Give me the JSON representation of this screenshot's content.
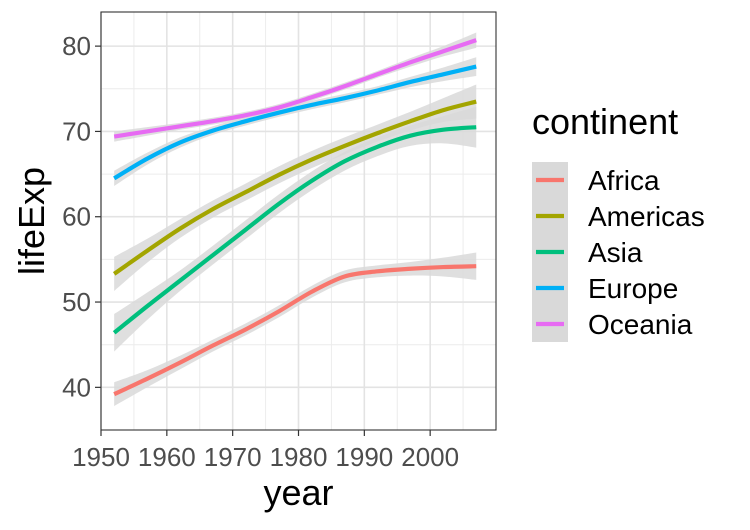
{
  "chart_data": {
    "type": "line",
    "xlabel": "year",
    "ylabel": "lifeExp",
    "xlim": [
      1950,
      2010
    ],
    "ylim": [
      35,
      84
    ],
    "xticks": [
      1950,
      1960,
      1970,
      1980,
      1990,
      2000
    ],
    "yticks": [
      40,
      50,
      60,
      70,
      80
    ],
    "grid": true,
    "smooth": true,
    "confidence_band": true,
    "band_color": "#d9d9d9",
    "legend": {
      "title": "continent",
      "position": "right"
    },
    "series": [
      {
        "name": "Africa",
        "color": "#F8766D",
        "x": [
          1952,
          1957,
          1962,
          1967,
          1972,
          1977,
          1982,
          1987,
          1992,
          1997,
          2002,
          2007
        ],
        "y": [
          39.2,
          41.0,
          42.9,
          44.9,
          46.8,
          48.9,
          51.2,
          53.0,
          53.6,
          53.9,
          54.1,
          54.2
        ],
        "band": [
          1.4,
          1.0,
          0.8,
          0.7,
          0.7,
          0.7,
          0.7,
          0.7,
          0.7,
          0.8,
          1.1,
          1.6
        ]
      },
      {
        "name": "Americas",
        "color": "#A3A500",
        "x": [
          1952,
          1957,
          1962,
          1967,
          1972,
          1977,
          1982,
          1987,
          1992,
          1997,
          2002,
          2007
        ],
        "y": [
          53.3,
          56.0,
          58.6,
          60.9,
          62.9,
          64.9,
          66.7,
          68.3,
          69.8,
          71.2,
          72.5,
          73.5
        ],
        "band": [
          2.0,
          1.4,
          1.1,
          1.0,
          1.0,
          1.0,
          1.0,
          1.0,
          1.0,
          1.1,
          1.4,
          2.0
        ]
      },
      {
        "name": "Asia",
        "color": "#00BF7D",
        "x": [
          1952,
          1957,
          1962,
          1967,
          1972,
          1977,
          1982,
          1987,
          1992,
          1997,
          2002,
          2007
        ],
        "y": [
          46.4,
          49.5,
          52.5,
          55.5,
          58.5,
          61.5,
          64.2,
          66.5,
          68.2,
          69.5,
          70.2,
          70.5
        ],
        "band": [
          2.2,
          1.6,
          1.2,
          1.1,
          1.1,
          1.1,
          1.1,
          1.1,
          1.1,
          1.2,
          1.6,
          2.4
        ]
      },
      {
        "name": "Europe",
        "color": "#00B0F6",
        "x": [
          1952,
          1957,
          1962,
          1967,
          1972,
          1977,
          1982,
          1987,
          1992,
          1997,
          2002,
          2007
        ],
        "y": [
          64.5,
          66.8,
          68.7,
          70.1,
          71.2,
          72.2,
          73.1,
          73.9,
          74.8,
          75.8,
          76.7,
          77.6
        ],
        "band": [
          0.9,
          0.7,
          0.6,
          0.5,
          0.5,
          0.5,
          0.5,
          0.5,
          0.5,
          0.6,
          0.8,
          1.1
        ]
      },
      {
        "name": "Oceania",
        "color": "#E76BF3",
        "x": [
          1952,
          1957,
          1962,
          1967,
          1972,
          1977,
          1982,
          1987,
          1992,
          1997,
          2002,
          2007
        ],
        "y": [
          69.4,
          70.0,
          70.6,
          71.2,
          71.9,
          72.8,
          74.0,
          75.3,
          76.7,
          78.1,
          79.4,
          80.7
        ],
        "band": [
          0.6,
          0.5,
          0.4,
          0.4,
          0.4,
          0.4,
          0.4,
          0.4,
          0.4,
          0.5,
          0.6,
          0.9
        ]
      }
    ]
  }
}
